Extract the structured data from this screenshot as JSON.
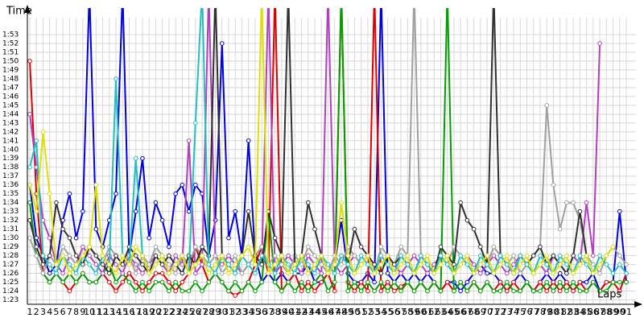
{
  "chart_data": {
    "type": "line",
    "x_label": "Laps",
    "y_label": "Time",
    "categories": [
      "1",
      "2",
      "3",
      "4",
      "5",
      "6",
      "7",
      "8",
      "9",
      "10",
      "11",
      "12",
      "13",
      "14",
      "15",
      "16",
      "17",
      "18",
      "19",
      "20",
      "21",
      "22",
      "23",
      "24",
      "25",
      "26",
      "27",
      "28",
      "29",
      "30",
      "31",
      "32",
      "33",
      "34",
      "35",
      "36",
      "37",
      "38",
      "39",
      "40",
      "41",
      "42",
      "43",
      "44",
      "45",
      "46",
      "47",
      "48",
      "49",
      "50",
      "51",
      "52",
      "53",
      "54",
      "55",
      "56",
      "57",
      "58",
      "59",
      "60",
      "61",
      "62",
      "63",
      "64",
      "65",
      "66",
      "67",
      "68",
      "69",
      "70",
      "71",
      "72",
      "73",
      "74",
      "75",
      "76",
      "77",
      "78",
      "79",
      "80",
      "81",
      "82",
      "83",
      "84",
      "85",
      "86",
      "87",
      "88",
      "89",
      "90",
      "91"
    ],
    "ylim": [
      82.5,
      116
    ],
    "yticks": [
      {
        "value": 83,
        "label": "1:23"
      },
      {
        "value": 84,
        "label": "1:24"
      },
      {
        "value": 85,
        "label": "1:25"
      },
      {
        "value": 86,
        "label": "1:26"
      },
      {
        "value": 87,
        "label": "1:27"
      },
      {
        "value": 88,
        "label": "1:28"
      },
      {
        "value": 89,
        "label": "1:29"
      },
      {
        "value": 90,
        "label": "1:30"
      },
      {
        "value": 91,
        "label": "1:31"
      },
      {
        "value": 92,
        "label": "1:32"
      },
      {
        "value": 93,
        "label": "1:33"
      },
      {
        "value": 94,
        "label": "1:34"
      },
      {
        "value": 95,
        "label": "1:35"
      },
      {
        "value": 96,
        "label": "1:36"
      },
      {
        "value": 97,
        "label": "1:37"
      },
      {
        "value": 98,
        "label": "1:38"
      },
      {
        "value": 99,
        "label": "1:39"
      },
      {
        "value": 100,
        "label": "1:40"
      },
      {
        "value": 101,
        "label": "1:41"
      },
      {
        "value": 102,
        "label": "1:42"
      },
      {
        "value": 103,
        "label": "1:43"
      },
      {
        "value": 104,
        "label": "1:44"
      },
      {
        "value": 105,
        "label": "1:45"
      },
      {
        "value": 106,
        "label": "1:46"
      },
      {
        "value": 107,
        "label": "1:47"
      },
      {
        "value": 108,
        "label": "1:48"
      },
      {
        "value": 109,
        "label": "1:49"
      },
      {
        "value": 110,
        "label": "1:50"
      },
      {
        "value": 111,
        "label": "1:51"
      },
      {
        "value": 112,
        "label": "1:52"
      },
      {
        "value": 113,
        "label": "1:53"
      }
    ],
    "grid": true,
    "series": [
      {
        "color": "#0000e0",
        "values": [
          96,
          90,
          88,
          86,
          87,
          92,
          95,
          90,
          93,
          118,
          91,
          89,
          92,
          95,
          118,
          88,
          93,
          99,
          90,
          94,
          92,
          89,
          95,
          96,
          93,
          96,
          95,
          88,
          92,
          112,
          90,
          93,
          88,
          101,
          88,
          85,
          86,
          85,
          86,
          85,
          86,
          86,
          87,
          85,
          85,
          86,
          87,
          92,
          86,
          85,
          85,
          86,
          85,
          118,
          86,
          85,
          86,
          85,
          86,
          85,
          86,
          85,
          84,
          85,
          85,
          84,
          85,
          86,
          87,
          86,
          86,
          85,
          84,
          85,
          86,
          85,
          84,
          85,
          86,
          85,
          86,
          85,
          84,
          85,
          85,
          86,
          84,
          85,
          85,
          93,
          85
        ]
      },
      {
        "color": "#e00000",
        "values": [
          110,
          95,
          86,
          85,
          86,
          85,
          84,
          85,
          86,
          85,
          85,
          86,
          85,
          84,
          85,
          86,
          85,
          84,
          85,
          86,
          86,
          85,
          84,
          85,
          86,
          89,
          87,
          85,
          86,
          85,
          84,
          83.5,
          84,
          85,
          87,
          89,
          86,
          118,
          84,
          85,
          86,
          84,
          85,
          84,
          85,
          86,
          84,
          118,
          85,
          84,
          85,
          84,
          118,
          84,
          85,
          84,
          84.5,
          85,
          84,
          85,
          84,
          85,
          84,
          85,
          84,
          85,
          84,
          85,
          84,
          85,
          84,
          85,
          84,
          85,
          84,
          85,
          84,
          85,
          84,
          85,
          84,
          85,
          84,
          85,
          84,
          85,
          84,
          85,
          85,
          84,
          86
        ]
      },
      {
        "color": "#00a000",
        "values": [
          94,
          88,
          86,
          85,
          86,
          85,
          86,
          85,
          86,
          85,
          85,
          86,
          87,
          85,
          86,
          85,
          84,
          85,
          84,
          85,
          85,
          84,
          85,
          84,
          84,
          85,
          84,
          85,
          86,
          85,
          84,
          85,
          84,
          85,
          84,
          85,
          93,
          85,
          84,
          85,
          84,
          85,
          84,
          85,
          86,
          84,
          85,
          118,
          84,
          85,
          84,
          85,
          84,
          85,
          84,
          85,
          84,
          85,
          84,
          85,
          84,
          85,
          84,
          118,
          84,
          85,
          84,
          85,
          84,
          85,
          84,
          84,
          85,
          84,
          84,
          85,
          84,
          84,
          85,
          84,
          85,
          84,
          85,
          84,
          84,
          85,
          84,
          84,
          85,
          85,
          85
        ]
      },
      {
        "color": "#b040c0",
        "values": [
          104,
          98,
          92,
          90,
          87,
          86,
          88,
          87,
          89,
          88,
          87,
          86,
          88,
          87,
          86,
          88,
          87,
          86,
          87,
          88,
          87,
          86,
          88,
          87,
          101,
          86,
          87,
          118,
          88,
          87,
          88,
          87,
          86,
          87,
          88,
          87,
          118,
          86,
          87,
          88,
          87,
          86,
          88,
          87,
          86,
          118,
          87,
          86,
          87,
          88,
          87,
          88,
          86,
          87,
          88,
          87,
          86,
          87,
          88,
          87,
          86,
          87,
          88,
          87,
          86,
          87,
          88,
          87,
          86,
          87,
          88,
          87,
          86,
          87,
          88,
          87,
          86,
          87,
          86,
          88,
          87,
          86,
          88,
          87,
          94,
          88,
          112,
          null,
          null,
          null,
          null
        ]
      },
      {
        "color": "#a0a0a0",
        "values": [
          90,
          88,
          86,
          88,
          87,
          89,
          88,
          87,
          88,
          89,
          88,
          87,
          89,
          88,
          87,
          88,
          86,
          88,
          87,
          89,
          88,
          87,
          86,
          88,
          87,
          89,
          88,
          87,
          88,
          86,
          87,
          88,
          86,
          87,
          88,
          89,
          87,
          88,
          87,
          86,
          88,
          87,
          89,
          88,
          87,
          86,
          88,
          87,
          89,
          88,
          87,
          88,
          86,
          89,
          88,
          87,
          89,
          88,
          118,
          88,
          87,
          86,
          88,
          87,
          89,
          88,
          87,
          86,
          88,
          87,
          89,
          88,
          87,
          88,
          86,
          87,
          88,
          89,
          105,
          96,
          91,
          94,
          94,
          92,
          88,
          87,
          86,
          88,
          89,
          88,
          87
        ]
      },
      {
        "color": "#303030",
        "values": [
          92,
          89,
          87,
          88,
          94,
          91,
          90,
          88,
          87,
          89,
          88,
          87,
          86,
          88,
          87,
          89,
          88,
          87,
          86,
          88,
          87,
          88,
          87,
          86,
          88,
          87,
          89,
          88,
          118,
          88,
          87,
          86,
          88,
          93,
          88,
          87,
          93,
          90,
          88,
          118,
          87,
          88,
          94,
          91,
          88,
          87,
          86,
          88,
          87,
          91,
          89,
          88,
          87,
          86,
          88,
          87,
          88,
          87,
          86,
          88,
          87,
          86,
          89,
          88,
          87,
          94,
          92,
          91,
          89,
          87,
          118,
          88,
          87,
          86,
          88,
          87,
          88,
          89,
          87,
          88,
          87,
          86,
          88,
          93,
          88,
          null,
          null,
          null,
          null,
          null,
          null
        ]
      },
      {
        "color": "#20c0c0",
        "values": [
          98,
          101,
          88,
          87,
          86,
          88,
          87,
          86,
          88,
          87,
          86,
          88,
          87,
          108,
          88,
          87,
          99,
          88,
          86,
          87,
          88,
          86,
          87,
          88,
          86,
          103,
          118,
          87,
          86,
          88,
          87,
          86,
          88,
          87,
          86,
          88,
          87,
          86,
          88,
          87,
          86,
          88,
          87,
          86,
          88,
          87,
          86,
          88,
          87,
          86,
          88,
          87,
          86,
          88,
          87,
          86,
          88,
          87,
          86,
          88,
          87,
          86,
          88,
          87,
          86,
          88,
          87,
          86,
          88,
          87,
          86,
          88,
          87,
          86,
          88,
          87,
          86,
          88,
          87,
          86,
          88,
          87,
          86,
          88,
          87,
          86,
          88,
          87,
          86,
          87,
          86
        ]
      },
      {
        "color": "#e0e000",
        "values": [
          96,
          93,
          102,
          95,
          87,
          88,
          86,
          87,
          88,
          89,
          96,
          88,
          87,
          86,
          88,
          87,
          89,
          88,
          86,
          87,
          88,
          86,
          87,
          88,
          86,
          87,
          88,
          86,
          87,
          88,
          86,
          87,
          88,
          89,
          87,
          118,
          86,
          87,
          88,
          86,
          87,
          88,
          86,
          87,
          88,
          86,
          87,
          94,
          88,
          86,
          87,
          88,
          86,
          87,
          88,
          86,
          87,
          88,
          86,
          87,
          88,
          86,
          87,
          88,
          86,
          87,
          88,
          86,
          87,
          88,
          86,
          87,
          88,
          86,
          87,
          88,
          86,
          87,
          88,
          86,
          87,
          88,
          86,
          87,
          88,
          86,
          87,
          88,
          89,
          null,
          null
        ]
      }
    ]
  }
}
